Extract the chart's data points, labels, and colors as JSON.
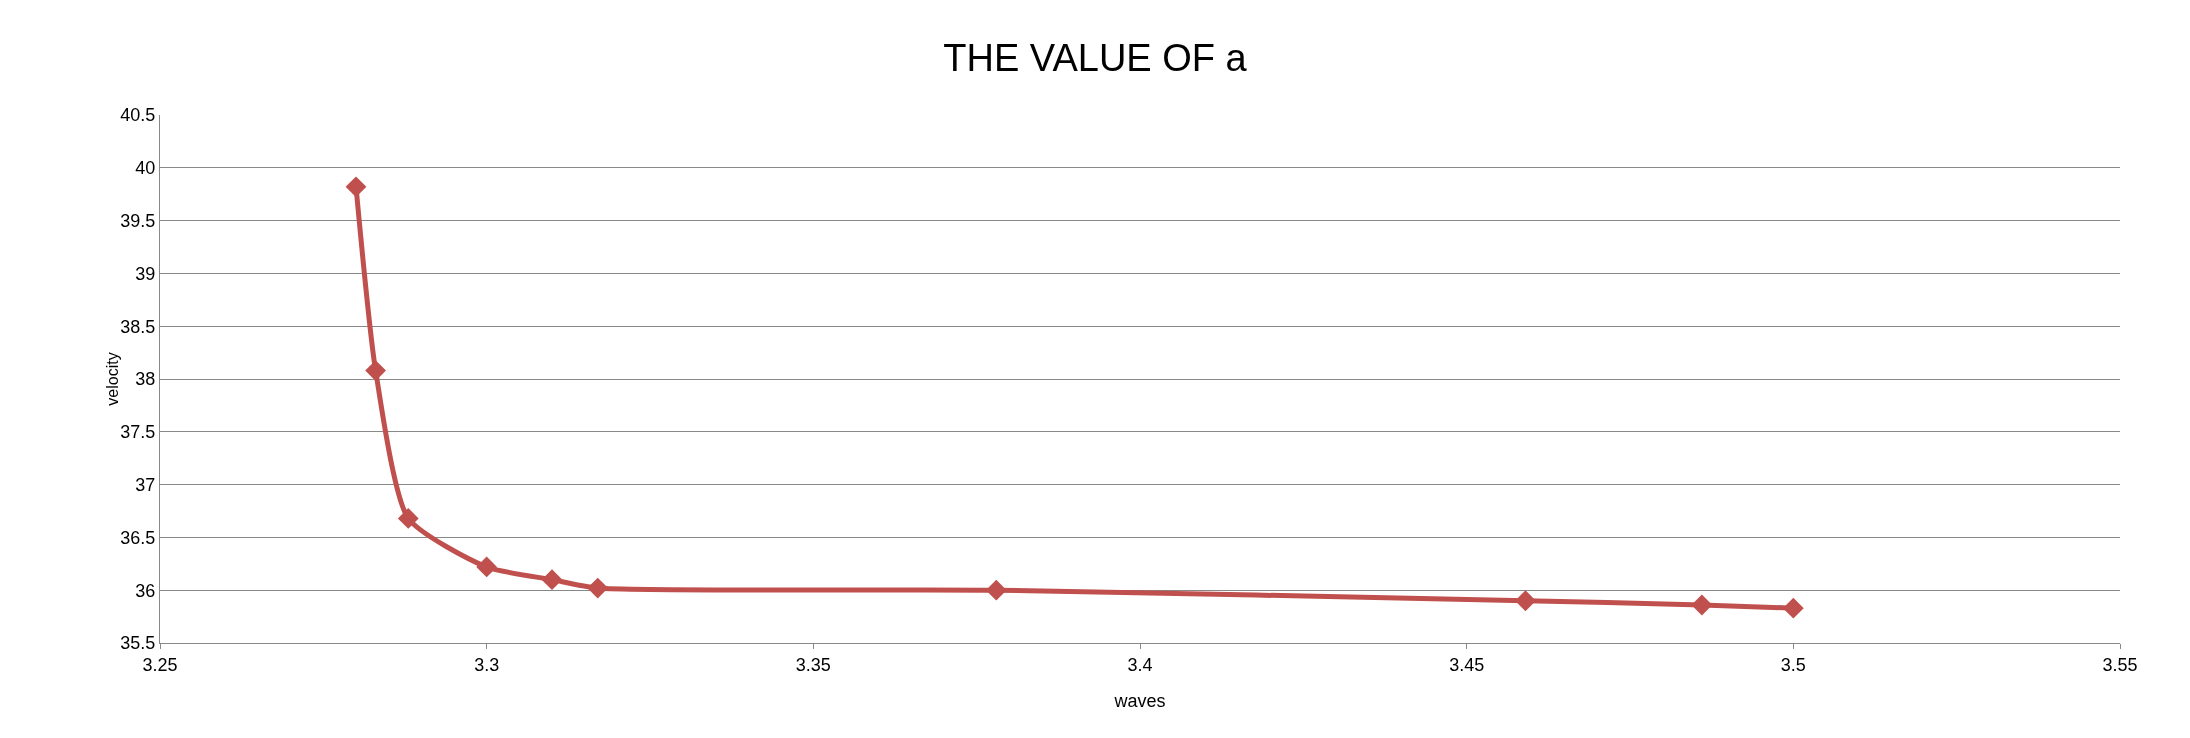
{
  "chart_data": {
    "type": "line",
    "title": "THE VALUE OF a",
    "xlabel": "waves",
    "ylabel": "velocity",
    "x": [
      3.28,
      3.283,
      3.288,
      3.3,
      3.31,
      3.317,
      3.378,
      3.459,
      3.486,
      3.5
    ],
    "series": [
      {
        "color": "#c0504d",
        "values": [
          39.82,
          38.08,
          36.68,
          36.22,
          36.1,
          36.02,
          36.0,
          35.9,
          35.86,
          35.83
        ]
      }
    ],
    "xlim": [
      3.25,
      3.55
    ],
    "xticks": [
      3.25,
      3.3,
      3.35,
      3.4,
      3.45,
      3.5,
      3.55
    ],
    "ylim": [
      35.5,
      40.5
    ],
    "yticks": [
      35.5,
      36,
      36.5,
      37,
      37.5,
      38,
      38.5,
      39,
      39.5,
      40,
      40.5
    ],
    "grid": "y",
    "marker": "diamond",
    "line_style": "solid"
  }
}
